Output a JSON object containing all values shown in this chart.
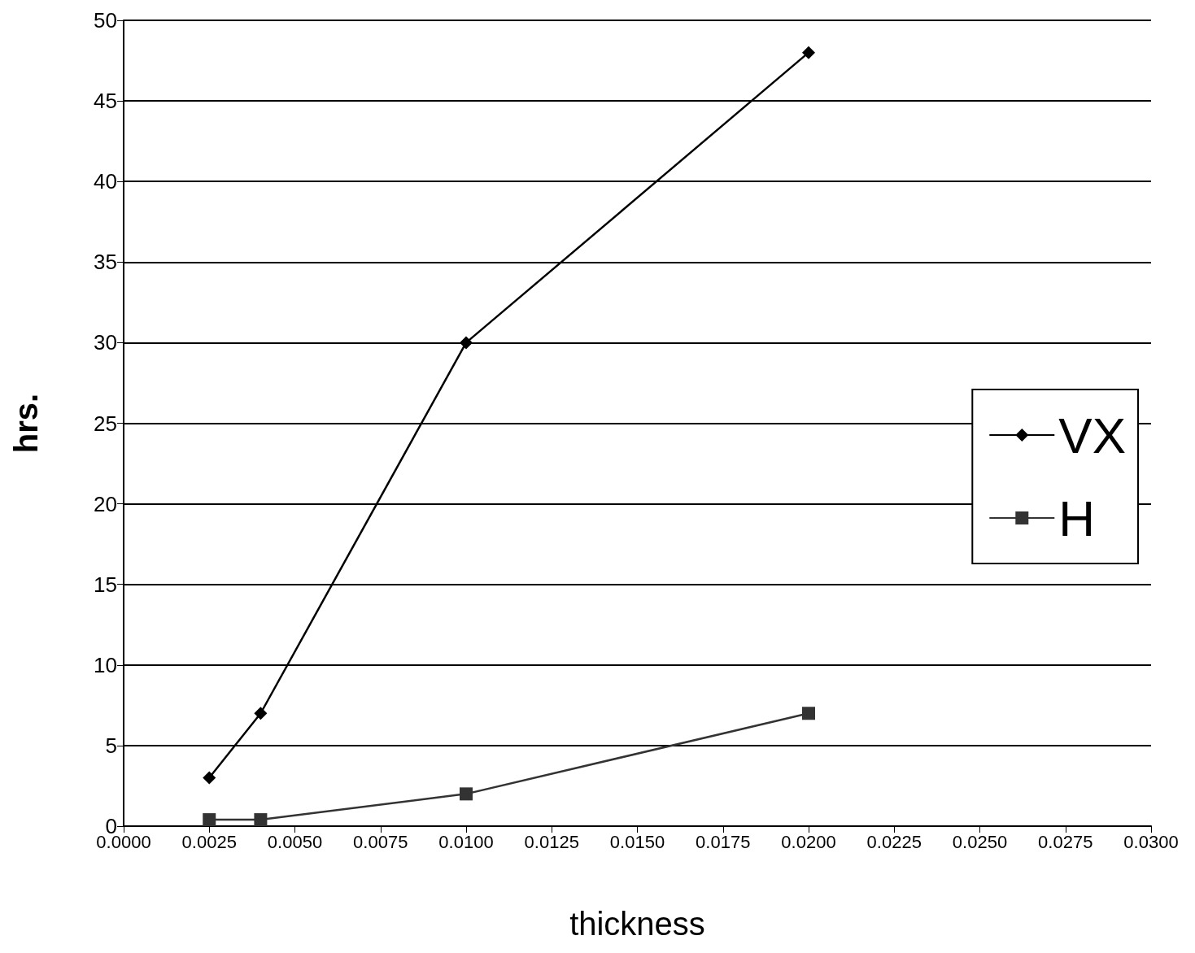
{
  "chart_data": {
    "type": "line",
    "xlabel": "thickness",
    "ylabel": "hrs.",
    "xlim": [
      0,
      0.03
    ],
    "xticks": [
      {
        "value": 0,
        "label": "0.0000"
      },
      {
        "value": 0.0025,
        "label": "0.0025"
      },
      {
        "value": 0.005,
        "label": "0.0050"
      },
      {
        "value": 0.0075,
        "label": "0.0075"
      },
      {
        "value": 0.01,
        "label": "0.0100"
      },
      {
        "value": 0.0125,
        "label": "0.0125"
      },
      {
        "value": 0.015,
        "label": "0.0150"
      },
      {
        "value": 0.0175,
        "label": "0.0175"
      },
      {
        "value": 0.02,
        "label": "0.0200"
      },
      {
        "value": 0.0225,
        "label": "0.0225"
      },
      {
        "value": 0.025,
        "label": "0.0250"
      },
      {
        "value": 0.0275,
        "label": "0.0275"
      },
      {
        "value": 0.03,
        "label": "0.0300"
      }
    ],
    "ylim": [
      0,
      50
    ],
    "yticks": [
      0,
      5,
      10,
      15,
      20,
      25,
      30,
      35,
      40,
      45,
      50
    ],
    "grid": "y",
    "legend": "right",
    "line_style": "solid",
    "series": [
      {
        "name": "VX",
        "color": "#000000",
        "marker": "diamond",
        "x": [
          0.0025,
          0.004,
          0.01,
          0.02
        ],
        "values": [
          3,
          7,
          30,
          48
        ]
      },
      {
        "name": "H",
        "color": "#333333",
        "marker": "square",
        "x": [
          0.0025,
          0.004,
          0.01,
          0.02
        ],
        "values": [
          0.4,
          0.4,
          2,
          7
        ]
      }
    ]
  }
}
